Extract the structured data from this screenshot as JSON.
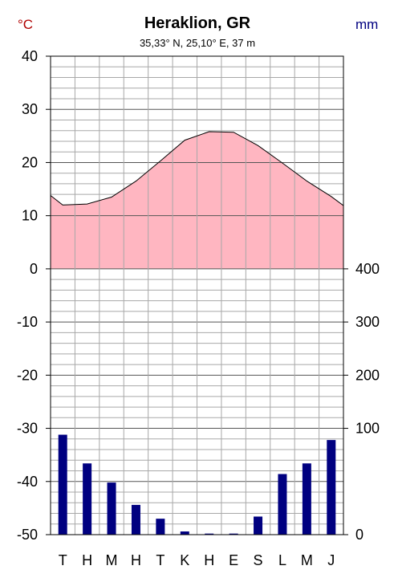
{
  "chart_data": {
    "type": "climate-diagram",
    "title": "Heraklion, GR",
    "subtitle": "35,33° N, 25,10° E, 37 m",
    "left_unit": "°C",
    "right_unit": "mm",
    "categories": [
      "T",
      "H",
      "M",
      "H",
      "T",
      "K",
      "H",
      "E",
      "S",
      "L",
      "M",
      "J"
    ],
    "temperature": {
      "name": "Temperature",
      "values": [
        12.0,
        12.2,
        13.5,
        16.5,
        20.3,
        24.2,
        25.8,
        25.7,
        23.2,
        19.9,
        16.5,
        13.6
      ],
      "start": 13.8,
      "end": 11.9,
      "color": "#000000",
      "fill": "#ffb6c1"
    },
    "precipitation": {
      "name": "Precipitation",
      "values": [
        94,
        67,
        49,
        28,
        15,
        3,
        1,
        1,
        17,
        57,
        67,
        89
      ],
      "color": "#000080"
    },
    "left_axis": {
      "min": -50,
      "max": 40,
      "ticks": [
        40,
        30,
        20,
        10,
        0,
        -10,
        -20,
        -30,
        -40,
        -50
      ]
    },
    "right_axis": {
      "ticks": [
        400,
        300,
        200,
        100,
        0
      ]
    },
    "grid": true
  }
}
